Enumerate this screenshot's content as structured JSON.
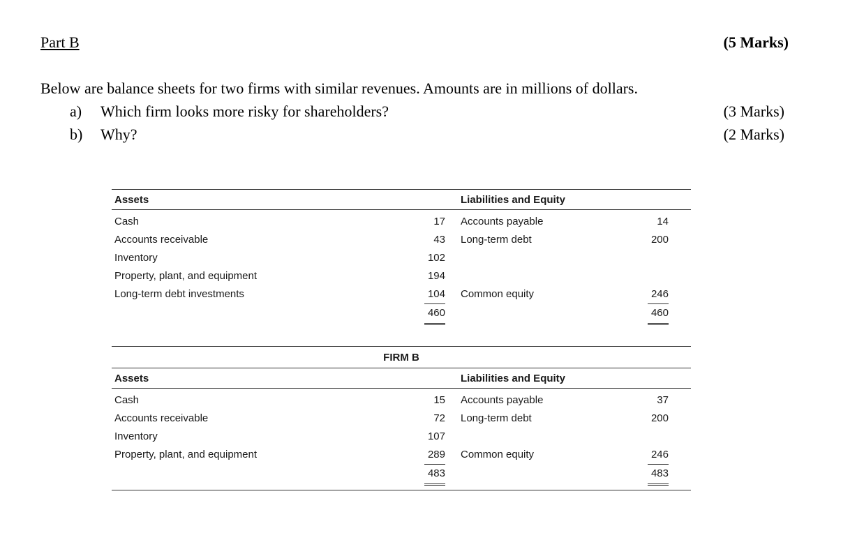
{
  "header": {
    "part_label": "Part B",
    "marks": "(5 Marks)"
  },
  "intro": "Below are balance sheets for two firms with similar revenues. Amounts are in millions of dollars.",
  "questions": [
    {
      "label": "a)",
      "text": "Which firm looks more risky for shareholders?",
      "marks": "(3 Marks)"
    },
    {
      "label": "b)",
      "text": "Why?",
      "marks": "(2 Marks)"
    }
  ],
  "tables": [
    {
      "columns": {
        "assets": "Assets",
        "liabilities": "Liabilities and Equity"
      },
      "rows": [
        {
          "a_label": "Cash",
          "a_value": "17",
          "l_label": "Accounts payable",
          "l_value": "14"
        },
        {
          "a_label": "Accounts receivable",
          "a_value": "43",
          "l_label": "Long-term debt",
          "l_value": "200"
        },
        {
          "a_label": "Inventory",
          "a_value": "102",
          "l_label": "",
          "l_value": ""
        },
        {
          "a_label": "Property, plant, and equipment",
          "a_value": "194",
          "l_label": "",
          "l_value": ""
        },
        {
          "a_label": "Long-term debt investments",
          "a_value": "104",
          "l_label": "Common equity",
          "l_value": "246"
        }
      ],
      "totals": {
        "a_value": "460",
        "l_value": "460"
      }
    },
    {
      "title": "FIRM B",
      "columns": {
        "assets": "Assets",
        "liabilities": "Liabilities and Equity"
      },
      "rows": [
        {
          "a_label": "Cash",
          "a_value": "15",
          "l_label": "Accounts payable",
          "l_value": "37"
        },
        {
          "a_label": "Accounts receivable",
          "a_value": "72",
          "l_label": "Long-term debt",
          "l_value": "200"
        },
        {
          "a_label": "Inventory",
          "a_value": "107",
          "l_label": "",
          "l_value": ""
        },
        {
          "a_label": "Property, plant, and equipment",
          "a_value": "289",
          "l_label": "Common equity",
          "l_value": "246"
        }
      ],
      "totals": {
        "a_value": "483",
        "l_value": "483"
      }
    }
  ]
}
